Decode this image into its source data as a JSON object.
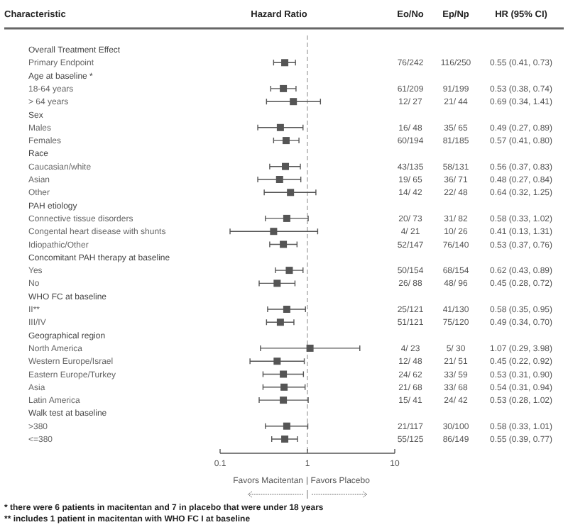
{
  "chart_data": {
    "type": "scatter",
    "orientation": "horizontal",
    "title": "Hazard Ratio",
    "ylabel": "Characteristic",
    "log": "x",
    "xlim": [
      0.1,
      10
    ],
    "xticks": [
      0.1,
      1,
      10
    ],
    "marker": "square",
    "categories": [
      "Overall Treatment Effect",
      "Primary Endpoint",
      "Age at baseline *",
      "18-64 years",
      "> 64 years",
      "Sex",
      "Males",
      "Females",
      "Race",
      "Caucasian/white",
      "Asian",
      "Other",
      "PAH etiology",
      "Connective tissue disorders",
      "Congental heart disease with shunts",
      "Idiopathic/Other",
      "Concomitant PAH therapy at baseline",
      "Yes",
      "No",
      "WHO FC at baseline",
      "II**",
      "III/IV",
      "Geographical region",
      "North America",
      "Western Europe/Israel",
      "Eastern Europe/Turkey",
      "Asia",
      "Latin America",
      "Walk test at baseline",
      ">380",
      "<=380"
    ],
    "series": [
      {
        "color": "#555555",
        "values": [
          null,
          0.55,
          null,
          0.53,
          0.69,
          null,
          0.49,
          0.57,
          null,
          0.56,
          0.48,
          0.64,
          null,
          0.58,
          0.41,
          0.53,
          null,
          0.62,
          0.45,
          null,
          0.58,
          0.49,
          null,
          1.07,
          0.45,
          0.53,
          0.54,
          0.53,
          null,
          0.58,
          0.55
        ],
        "errors": [
          null,
          [
            0.41,
            0.73
          ],
          null,
          [
            0.38,
            0.74
          ],
          [
            0.34,
            1.41
          ],
          null,
          [
            0.27,
            0.89
          ],
          [
            0.41,
            0.8
          ],
          null,
          [
            0.37,
            0.83
          ],
          [
            0.27,
            0.84
          ],
          [
            0.32,
            1.25
          ],
          null,
          [
            0.33,
            1.02
          ],
          [
            0.13,
            1.31
          ],
          [
            0.37,
            0.76
          ],
          null,
          [
            0.43,
            0.89
          ],
          [
            0.28,
            0.72
          ],
          null,
          [
            0.35,
            0.95
          ],
          [
            0.34,
            0.7
          ],
          null,
          [
            0.29,
            3.98
          ],
          [
            0.22,
            0.92
          ],
          [
            0.31,
            0.9
          ],
          [
            0.31,
            0.94
          ],
          [
            0.28,
            1.02
          ],
          null,
          [
            0.33,
            1.01
          ],
          [
            0.39,
            0.77
          ]
        ],
        "value_labels": [
          null,
          "0.55 (0.41, 0.73)",
          null,
          "0.53 (0.38, 0.74)",
          "0.69 (0.34, 1.41)",
          null,
          "0.49 (0.27, 0.89)",
          "0.57 (0.41, 0.80)",
          null,
          "0.56 (0.37, 0.83)",
          "0.48 (0.27, 0.84)",
          "0.64 (0.32, 1.25)",
          null,
          "0.58 (0.33, 1.02)",
          "0.41 (0.13, 1.31)",
          "0.53 (0.37, 0.76)",
          null,
          "0.62 (0.43, 0.89)",
          "0.45 (0.28, 0.72)",
          null,
          "0.58 (0.35, 0.95)",
          "0.49 (0.34, 0.70)",
          null,
          "1.07 (0.29, 3.98)",
          "0.45 (0.22, 0.92)",
          "0.53 (0.31, 0.90)",
          "0.54 (0.31, 0.94)",
          "0.53 (0.28, 1.02)",
          null,
          "0.58 (0.33, 1.01)",
          "0.55 (0.39, 0.77)"
        ]
      }
    ],
    "cell_labels": [
      null,
      [
        "76/242",
        "116/250"
      ],
      null,
      [
        "61/209",
        "91/199"
      ],
      [
        "12/ 27",
        "21/ 44"
      ],
      null,
      [
        "16/ 48",
        "35/ 65"
      ],
      [
        "60/194",
        "81/185"
      ],
      null,
      [
        "43/135",
        "58/131"
      ],
      [
        "19/ 65",
        "36/ 71"
      ],
      [
        "14/ 42",
        "22/ 48"
      ],
      null,
      [
        "20/ 73",
        "31/ 82"
      ],
      [
        "4/ 21",
        "10/ 26"
      ],
      [
        "52/147",
        "76/140"
      ],
      null,
      [
        "50/154",
        "68/154"
      ],
      [
        "26/ 88",
        "48/ 96"
      ],
      null,
      [
        "25/121",
        "41/130"
      ],
      [
        "51/121",
        "75/120"
      ],
      null,
      [
        "4/ 23",
        "5/ 30"
      ],
      [
        "12/ 48",
        "21/ 51"
      ],
      [
        "24/ 62",
        "33/ 59"
      ],
      [
        "21/ 68",
        "33/ 68"
      ],
      [
        "15/ 41",
        "24/ 42"
      ],
      null,
      [
        "21/117",
        "30/100"
      ],
      [
        "55/125",
        "86/149"
      ]
    ],
    "ref_lines": [
      {
        "axis": "x",
        "value": 1,
        "line_style": "dashed",
        "color": "#aaaaaa"
      }
    ],
    "annotations": [
      "Eo/No",
      "Ep/Np",
      "HR (95% CI)",
      "Favors Macitentan",
      "| Favors Placebo",
      "* there were 6 patients in macitentan and 7 in placebo that were under 18 years",
      "** includes 1 patient in macitentan with WHO FC I at baseline"
    ]
  }
}
